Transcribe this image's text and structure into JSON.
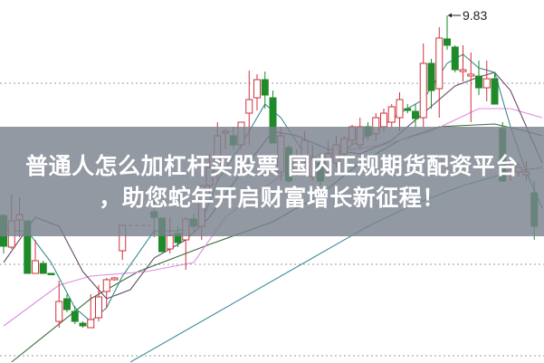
{
  "headline": {
    "line1": "普通人怎么加杠杆买股票 国内正规期货配资平台",
    "line2": "，助您蛇年开启财富增长新征程！"
  },
  "chart_data": {
    "type": "candlestick",
    "title": "",
    "high_annotation": "9.83",
    "colors": {
      "up": "#d0303a",
      "down": "#1e8a2a",
      "ma5": "#3a8a8a",
      "ma10": "#6a4a6a",
      "ma20": "#e08ce0",
      "ma30": "#3a6a3a",
      "ma60": "#3f8f9f",
      "grid": "#999999",
      "banner": "#7a828e"
    },
    "grid": "dotted horizontal",
    "ylim": [
      5.99,
      10.0
    ],
    "candles": [
      [
        7.62,
        7.28,
        7.63,
        7.2
      ],
      [
        7.27,
        7.56,
        7.85,
        7.25
      ],
      [
        7.57,
        7.63,
        7.82,
        7.38
      ],
      [
        7.56,
        6.98,
        7.56,
        6.98
      ],
      [
        6.98,
        7.12,
        7.35,
        6.98
      ],
      [
        7.09,
        6.98,
        7.12,
        6.98
      ],
      [
        6.98,
        6.97,
        6.98,
        6.97
      ],
      [
        6.45,
        6.67,
        6.9,
        6.38
      ],
      [
        6.7,
        6.58,
        6.75,
        6.55
      ],
      [
        6.56,
        6.45,
        6.62,
        6.42
      ],
      [
        6.43,
        6.4,
        6.45,
        6.38
      ],
      [
        6.38,
        6.47,
        6.75,
        6.38
      ],
      [
        6.49,
        6.72,
        6.85,
        6.45
      ],
      [
        6.78,
        6.91,
        6.93,
        6.6
      ],
      [
        6.91,
        6.93,
        6.94,
        6.9
      ],
      [
        7.23,
        7.51,
        7.51,
        7.13
      ],
      null,
      null,
      null,
      [
        7.66,
        7.6,
        7.85,
        7.38
      ],
      [
        7.59,
        7.22,
        7.59,
        7.22
      ],
      [
        7.25,
        7.4,
        7.6,
        7.2
      ],
      [
        7.42,
        7.32,
        7.5,
        7.27
      ],
      [
        7.35,
        7.58,
        7.6,
        7.02
      ],
      [
        7.58,
        7.5,
        7.64,
        7.45
      ],
      [
        7.5,
        7.95,
        7.95,
        7.35
      ],
      [
        7.95,
        8.15,
        8.3,
        7.85
      ],
      [
        8.1,
        8.5,
        8.65,
        8.0
      ],
      [
        8.53,
        8.55,
        8.58,
        8.35
      ],
      [
        8.5,
        8.4,
        8.6,
        8.35
      ],
      [
        8.4,
        8.65,
        8.65,
        8.35
      ],
      [
        8.75,
        8.9,
        9.22,
        8.4
      ],
      [
        8.92,
        9.12,
        9.18,
        8.78
      ],
      [
        9.12,
        8.95,
        9.21,
        8.8
      ],
      [
        8.92,
        8.42,
        9.0,
        8.42
      ],
      [
        8.1,
        8.5,
        8.6,
        8.0
      ],
      [
        8.37,
        8.0,
        8.4,
        7.98
      ],
      [
        8.1,
        8.25,
        8.35,
        8.05
      ],
      [
        8.25,
        8.45,
        8.55,
        8.2
      ],
      [
        8.05,
        8.25,
        8.4,
        8.0
      ],
      [
        8.2,
        8.0,
        8.3,
        7.95
      ],
      [
        8.1,
        8.3,
        8.45,
        8.05
      ],
      [
        8.2,
        8.4,
        8.5,
        8.15
      ],
      [
        8.3,
        8.47,
        8.5,
        8.25
      ],
      [
        8.45,
        8.6,
        8.62,
        8.4
      ],
      [
        8.4,
        8.6,
        8.7,
        8.35
      ],
      [
        8.6,
        8.5,
        8.65,
        8.45
      ],
      [
        8.52,
        8.7,
        8.75,
        8.45
      ],
      [
        8.6,
        8.75,
        8.8,
        8.55
      ],
      [
        8.65,
        8.82,
        8.85,
        8.6
      ],
      [
        8.7,
        8.9,
        8.98,
        8.55
      ],
      [
        8.8,
        8.78,
        8.85,
        8.75
      ],
      [
        8.77,
        8.69,
        8.85,
        8.6
      ],
      [
        8.7,
        9.3,
        9.52,
        8.6
      ],
      [
        9.3,
        9.0,
        9.35,
        8.8
      ],
      [
        9.02,
        9.58,
        9.7,
        8.7
      ],
      [
        9.57,
        9.5,
        9.83,
        9.45
      ],
      [
        9.48,
        9.23,
        9.5,
        9.2
      ],
      [
        9.21,
        9.23,
        9.5,
        9.1
      ],
      [
        9.16,
        9.18,
        9.42,
        8.65
      ],
      [
        9.16,
        9.03,
        9.33,
        8.95
      ],
      [
        9.03,
        9.13,
        9.33,
        8.88
      ],
      [
        9.13,
        8.85,
        9.2,
        8.85
      ],
      [
        8.58,
        8.0,
        8.65,
        8.0
      ],
      [
        8.08,
        8.12,
        8.25,
        8.0
      ],
      [
        8.1,
        8.15,
        8.2,
        8.05
      ],
      [
        8.07,
        8.1,
        8.22,
        8.0
      ],
      [
        7.87,
        7.5,
        8.0,
        7.35
      ]
    ],
    "moving_averages": {
      "ma5": [
        [
          0,
          7.45
        ],
        [
          3,
          7.45
        ],
        [
          6,
          7.1
        ],
        [
          9,
          6.6
        ],
        [
          11,
          6.45
        ],
        [
          13,
          6.6
        ],
        [
          15,
          6.95
        ],
        [
          19,
          7.45
        ],
        [
          22,
          7.45
        ],
        [
          25,
          7.55
        ],
        [
          27,
          8.0
        ],
        [
          30,
          8.4
        ],
        [
          33,
          8.85
        ],
        [
          35,
          8.7
        ],
        [
          38,
          8.3
        ],
        [
          41,
          8.2
        ],
        [
          44,
          8.4
        ],
        [
          47,
          8.55
        ],
        [
          50,
          8.75
        ],
        [
          53,
          8.9
        ],
        [
          56,
          9.3
        ],
        [
          58,
          9.4
        ],
        [
          60,
          9.25
        ],
        [
          62,
          9.2
        ],
        [
          64,
          8.6
        ],
        [
          66,
          8.1
        ],
        [
          68,
          7.7
        ]
      ],
      "ma10": [
        [
          0,
          7.1
        ],
        [
          4,
          7.6
        ],
        [
          7,
          7.5
        ],
        [
          10,
          7.0
        ],
        [
          13,
          6.7
        ],
        [
          16,
          6.8
        ],
        [
          19,
          7.15
        ],
        [
          23,
          7.35
        ],
        [
          26,
          7.6
        ],
        [
          30,
          8.1
        ],
        [
          34,
          8.55
        ],
        [
          37,
          8.5
        ],
        [
          41,
          8.35
        ],
        [
          45,
          8.3
        ],
        [
          49,
          8.45
        ],
        [
          53,
          8.75
        ],
        [
          57,
          9.05
        ],
        [
          60,
          9.15
        ],
        [
          62,
          9.2
        ],
        [
          64,
          9.0
        ],
        [
          66,
          8.6
        ],
        [
          68,
          8.2
        ]
      ],
      "ma20": [
        [
          0,
          6.4
        ],
        [
          7,
          6.85
        ],
        [
          11,
          6.95
        ],
        [
          18,
          7.0
        ],
        [
          24,
          7.1
        ],
        [
          28,
          7.6
        ],
        [
          34,
          8.0
        ],
        [
          40,
          8.3
        ],
        [
          48,
          8.4
        ],
        [
          54,
          8.55
        ],
        [
          60,
          8.8
        ],
        [
          64,
          8.8
        ],
        [
          68,
          8.7
        ]
      ],
      "ma30": [
        [
          1,
          6.0
        ],
        [
          11,
          6.7
        ],
        [
          17,
          7.0
        ],
        [
          26,
          7.3
        ],
        [
          34,
          7.55
        ],
        [
          40,
          7.85
        ],
        [
          45,
          8.2
        ],
        [
          50,
          8.45
        ],
        [
          55,
          8.6
        ],
        [
          62,
          8.63
        ],
        [
          66,
          8.55
        ],
        [
          68,
          8.5
        ]
      ],
      "ma60": [
        [
          16,
          6.0
        ],
        [
          22,
          6.3
        ],
        [
          28,
          6.6
        ],
        [
          34,
          6.9
        ],
        [
          40,
          7.2
        ],
        [
          46,
          7.5
        ],
        [
          52,
          7.75
        ],
        [
          58,
          7.95
        ],
        [
          64,
          8.1
        ],
        [
          68,
          8.15
        ]
      ]
    }
  }
}
